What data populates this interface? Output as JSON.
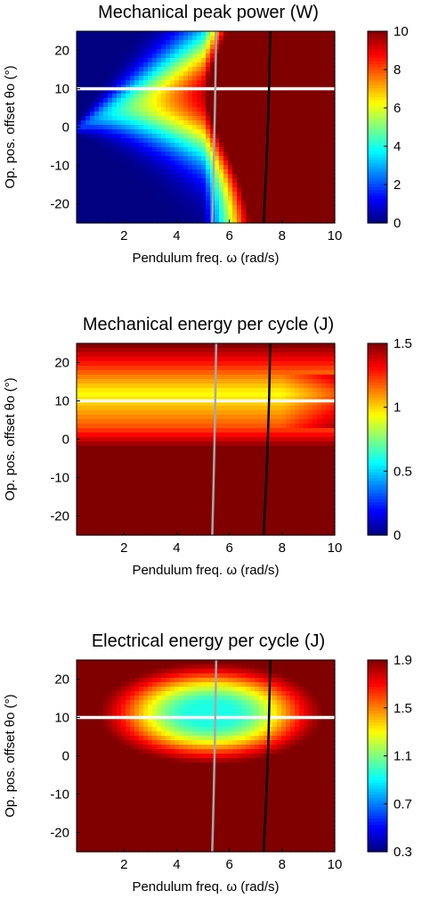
{
  "colormap": "jet",
  "chart_data": [
    {
      "type": "heatmap",
      "title": "Mechanical peak power (W)",
      "xlabel": "Pendulum freq. ω (rad/s)",
      "ylabel": "Op. pos. offset θo (°)",
      "xlim": [
        0.2,
        10
      ],
      "ylim": [
        -25,
        25
      ],
      "xticks": [
        2,
        4,
        6,
        8,
        10
      ],
      "yticks": [
        20,
        10,
        0,
        -10,
        -20
      ],
      "colorbar": {
        "range": [
          0,
          10
        ],
        "ticks": [
          0,
          2,
          4,
          6,
          8,
          10
        ],
        "tick_labels": [
          "0",
          "2",
          "4",
          "6",
          "8",
          "10"
        ]
      },
      "overlay_lines": [
        {
          "color": "#ffffff",
          "orientation": "horizontal",
          "y": 10
        },
        {
          "color": "#a8a8a8",
          "orientation": "vertical",
          "x_at_ymin": 5.35,
          "x_at_ymax": 5.5
        },
        {
          "color": "#000000",
          "orientation": "vertical",
          "x_at_ymin": 7.3,
          "x_at_ymax": 7.55
        }
      ]
    },
    {
      "type": "heatmap",
      "title": "Mechanical energy per cycle (J)",
      "xlabel": "Pendulum freq. ω (rad/s)",
      "ylabel": "Op. pos. offset θo (°)",
      "xlim": [
        0.2,
        10
      ],
      "ylim": [
        -25,
        25
      ],
      "xticks": [
        2,
        4,
        6,
        8,
        10
      ],
      "yticks": [
        20,
        10,
        0,
        -10,
        -20
      ],
      "colorbar": {
        "range": [
          0,
          1.5
        ],
        "ticks": [
          0,
          0.5,
          1,
          1.5
        ],
        "tick_labels": [
          "0",
          "0.5",
          "1",
          "1.5"
        ]
      },
      "overlay_lines": [
        {
          "color": "#ffffff",
          "orientation": "horizontal",
          "y": 10
        },
        {
          "color": "#a8a8a8",
          "orientation": "vertical",
          "x_at_ymin": 5.35,
          "x_at_ymax": 5.5
        },
        {
          "color": "#000000",
          "orientation": "vertical",
          "x_at_ymin": 7.3,
          "x_at_ymax": 7.55
        }
      ]
    },
    {
      "type": "heatmap",
      "title": "Electrical energy per cycle (J)",
      "xlabel": "Pendulum freq. ω (rad/s)",
      "ylabel": "Op. pos. offset θo (°)",
      "xlim": [
        0.2,
        10
      ],
      "ylim": [
        -25,
        25
      ],
      "xticks": [
        2,
        4,
        6,
        8,
        10
      ],
      "yticks": [
        20,
        10,
        0,
        -10,
        -20
      ],
      "colorbar": {
        "range": [
          0.3,
          1.9
        ],
        "ticks": [
          0.3,
          0.7,
          1.1,
          1.5,
          1.9
        ],
        "tick_labels": [
          "0.3",
          "0.7",
          "1.1",
          "1.5",
          "1.9"
        ]
      },
      "overlay_lines": [
        {
          "color": "#ffffff",
          "orientation": "horizontal",
          "y": 10
        },
        {
          "color": "#a8a8a8",
          "orientation": "vertical",
          "x_at_ymin": 5.35,
          "x_at_ymax": 5.5
        },
        {
          "color": "#000000",
          "orientation": "vertical",
          "x_at_ymin": 7.3,
          "x_at_ymax": 7.55
        }
      ]
    }
  ]
}
